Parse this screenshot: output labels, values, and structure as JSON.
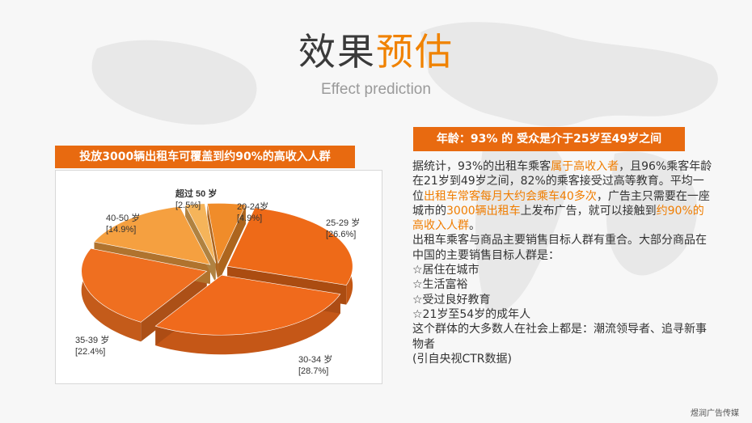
{
  "title_part1": "效果",
  "title_part2": "预估",
  "subtitle": "Effect prediction",
  "left_header": "投放3000辆出租车可覆盖到约90%的高收入人群",
  "right_header": "年龄：93% 的 受众是介于25岁至49岁之间",
  "chart_data": {
    "type": "pie",
    "style": "3d-exploded",
    "slices": [
      {
        "label": "20-24岁",
        "value": 4.9,
        "display": "[4.9%]",
        "color": "#f08c2a"
      },
      {
        "label": "25-29 岁",
        "value": 26.6,
        "display": "[26.6%]",
        "color": "#ee6a18"
      },
      {
        "label": "30-34 岁",
        "value": 28.7,
        "display": "[28.7%]",
        "color": "#f06a1c"
      },
      {
        "label": "35-39 岁",
        "value": 22.4,
        "display": "[22.4%]",
        "color": "#ef6f20"
      },
      {
        "label": "40-50 岁",
        "value": 14.9,
        "display": "[14.9%]",
        "color": "#f5a040"
      },
      {
        "label": "超过 50 岁",
        "value": 2.5,
        "display": "[2.5%]",
        "color": "#f5b45a"
      }
    ]
  },
  "body": {
    "p1_a": "据统计，93%的出租车乘客",
    "p1_hl1": "属于高收入者",
    "p1_b": "，且96%乘客年龄在21岁到49岁之间，82%的乘客接受过高等教育。平均一位",
    "p1_hl2": "出租车常客每月大约会乘车40多次",
    "p1_c": "，广告主只需要在一座城市的",
    "p1_hl3": "3000辆出租车",
    "p1_d": "上发布广告，就可以接触到",
    "p1_hl4": "约90%的高收入人群",
    "p1_e": "。",
    "p2": "出租车乘客与商品主要销售目标人群有重合。大部分商品在中国的主要销售目标人群是：",
    "items": [
      "☆居住在城市",
      "☆生活富裕",
      "☆受过良好教育",
      "☆21岁至54岁的成年人"
    ],
    "p3": "这个群体的大多数人在社会上都是：潮流领导者、追寻新事物者",
    "p4": "(引自央视CTR数据)"
  },
  "footer": "煜润广告传媒"
}
